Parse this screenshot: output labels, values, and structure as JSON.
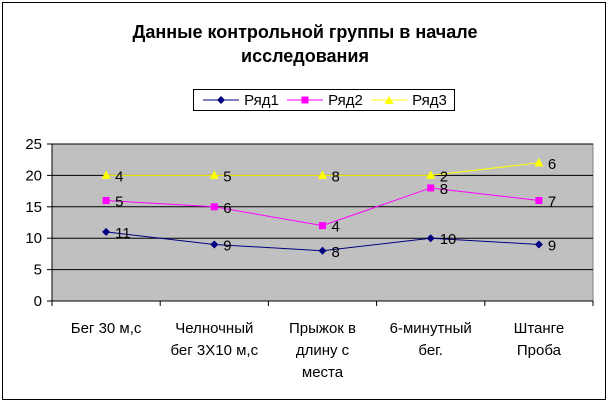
{
  "chart_data": {
    "type": "line",
    "title": "Данные контрольной группы в начале\nисследования",
    "categories": [
      [
        "Бег 30 м,с"
      ],
      [
        "Челночный",
        "бег 3Х10 м,с"
      ],
      [
        "Прыжок в",
        "длину с",
        "места"
      ],
      [
        "6-минутный",
        "бег."
      ],
      [
        "Штанге",
        "Проба"
      ]
    ],
    "series": [
      {
        "name": "Ряд1",
        "color": "#000080",
        "marker": "diamond",
        "values": [
          11,
          9,
          8,
          10,
          9
        ],
        "labels": [
          "11",
          "9",
          "8",
          "10",
          "9"
        ]
      },
      {
        "name": "Ряд2",
        "color": "#ff00ff",
        "marker": "square",
        "values": [
          16,
          15,
          12,
          18,
          16
        ],
        "labels": [
          "5",
          "6",
          "4",
          "8",
          "7"
        ]
      },
      {
        "name": "Ряд3",
        "color": "#ffff00",
        "marker": "triangle",
        "values": [
          20,
          20,
          20,
          20,
          22
        ],
        "labels": [
          "4",
          "5",
          "8",
          "2",
          "6"
        ]
      }
    ],
    "ylim": [
      0,
      25
    ],
    "yticks": [
      0,
      5,
      10,
      15,
      20,
      25
    ],
    "grid": true,
    "plot_background": "#c0c0c0",
    "legend_position": "top"
  }
}
